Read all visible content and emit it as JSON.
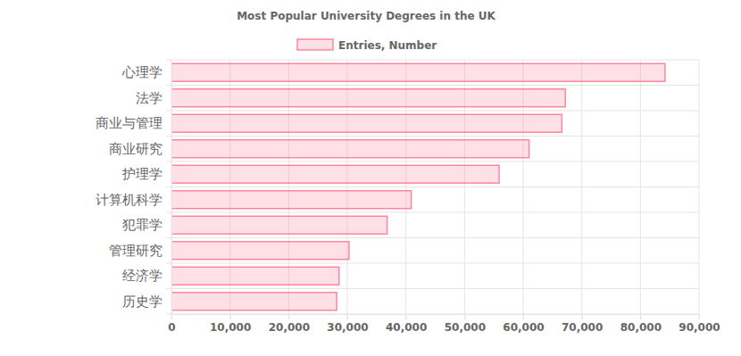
{
  "chart_data": {
    "type": "bar",
    "title": "Most Popular University Degrees in the UK",
    "orientation": "horizontal",
    "grid": true,
    "legend": "top",
    "categories": [
      "心理学",
      "法学",
      "商业与管理",
      "商业研究",
      "护理学",
      "计算机科学",
      "犯罪学",
      "管理研究",
      "经济学",
      "历史学"
    ],
    "series": [
      {
        "name": "Entries, Number",
        "color": "#ff6384",
        "values": [
          84200,
          67200,
          66600,
          61000,
          55900,
          40900,
          36800,
          30300,
          28600,
          28200
        ]
      }
    ],
    "xlim": [
      0,
      90000
    ],
    "xticks": [
      0,
      {
        "value": 10000,
        "label": "10,000"
      },
      {
        "value": 20000,
        "label": "20,000"
      },
      {
        "value": 30000,
        "label": "30,000"
      },
      {
        "value": 40000,
        "label": "40,000"
      },
      {
        "value": 50000,
        "label": "50,000"
      },
      {
        "value": 60000,
        "label": "60,000"
      },
      {
        "value": 70000,
        "label": "70,000"
      },
      {
        "value": 80000,
        "label": "80,000"
      },
      {
        "value": 90000,
        "label": "90,000"
      }
    ]
  }
}
